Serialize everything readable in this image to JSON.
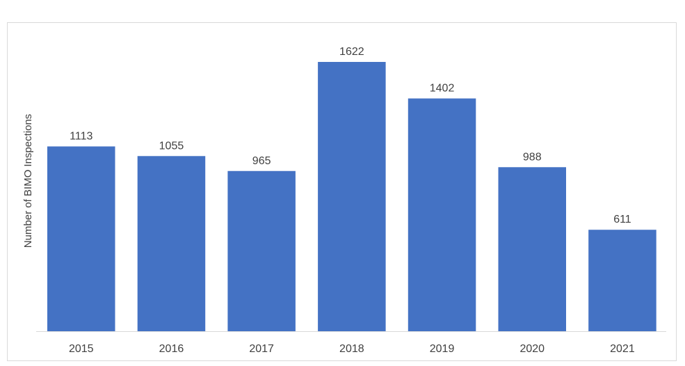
{
  "chart_data": {
    "type": "bar",
    "title": "",
    "xlabel": "",
    "ylabel": "Number of BIMO Inspections",
    "categories": [
      "2015",
      "2016",
      "2017",
      "2018",
      "2019",
      "2020",
      "2021"
    ],
    "values": [
      1113,
      1055,
      965,
      1622,
      1402,
      988,
      611
    ],
    "data_labels": [
      "1113",
      "1055",
      "965",
      "1622",
      "1402",
      "988",
      "611"
    ],
    "ylim": [
      0,
      1800
    ],
    "grid": false,
    "legend": "none",
    "colors": {
      "bar": "#4472C4",
      "text": "#404040",
      "axis": "#d9d9d9"
    }
  }
}
